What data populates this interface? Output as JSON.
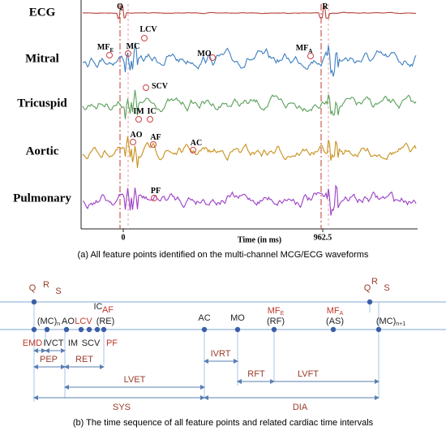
{
  "panel_a": {
    "channels": [
      "ECG",
      "Mitral",
      "Tricuspid",
      "Aortic",
      "Pulmonary"
    ],
    "features": [
      {
        "text": "Q"
      },
      {
        "text": "R"
      },
      {
        "text": "LCV"
      },
      {
        "text": "MF",
        "sub": "E"
      },
      {
        "text": "MC"
      },
      {
        "text": "MO"
      },
      {
        "text": "MF",
        "sub": "A"
      },
      {
        "text": "SCV"
      },
      {
        "text": "IM"
      },
      {
        "text": "IC"
      },
      {
        "text": "AO"
      },
      {
        "text": "AF"
      },
      {
        "text": "AC"
      },
      {
        "text": "PF"
      }
    ],
    "x_ticks": [
      "0",
      "962.5"
    ],
    "x_axis_label": "Time (in ms)",
    "caption": "(a) All feature points identified on the multi-channel MCG/ECG waveforms"
  },
  "panel_b": {
    "points": [
      {
        "text": "Q"
      },
      {
        "text": "R"
      },
      {
        "text": "S"
      },
      {
        "text": "Q"
      },
      {
        "text": "R"
      },
      {
        "text": "S"
      },
      {
        "text": "(MC)",
        "sub": "n"
      },
      {
        "text": "AO"
      },
      {
        "text": "IC"
      },
      {
        "text": "AF"
      },
      {
        "text": "LCV"
      },
      {
        "text": "(RE)"
      },
      {
        "text": "AC"
      },
      {
        "text": "MO"
      },
      {
        "text": "MF",
        "sub": "E"
      },
      {
        "text": "(RF)"
      },
      {
        "text": "MF",
        "sub": "A"
      },
      {
        "text": "(AS)"
      },
      {
        "text": "(MC)",
        "sub": "n+1"
      },
      {
        "text": "EMD"
      },
      {
        "text": "IVCT"
      },
      {
        "text": "IM"
      },
      {
        "text": "SCV"
      },
      {
        "text": "PF"
      }
    ],
    "intervals": [
      "PEP",
      "RET",
      "LVET",
      "SYS",
      "IVRT",
      "RFT",
      "LVFT",
      "DIA"
    ],
    "caption": "(b) The time sequence of all feature points and related cardiac time intervals"
  }
}
